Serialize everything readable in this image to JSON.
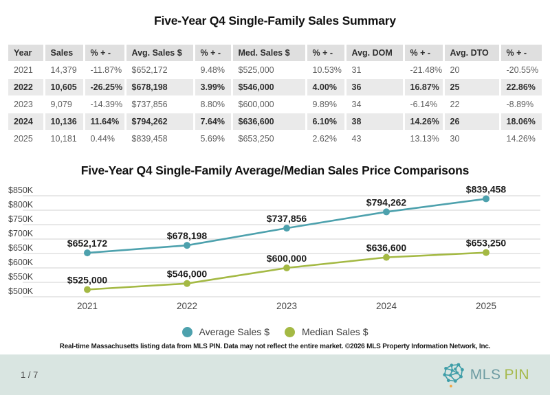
{
  "summary_table": {
    "title": "Five-Year Q4 Single-Family Sales Summary",
    "columns": [
      "Year",
      "Sales",
      "% + -",
      "Avg. Sales $",
      "% + -",
      "Med. Sales $",
      "% + -",
      "Avg. DOM",
      "% + -",
      "Avg. DTO",
      "% + -"
    ],
    "rows": [
      {
        "cells": [
          "2021",
          "14,379",
          "-11.87%",
          "$652,172",
          "9.48%",
          "$525,000",
          "10.53%",
          "31",
          "-21.48%",
          "20",
          "-20.55%"
        ]
      },
      {
        "cells": [
          "2022",
          "10,605",
          "-26.25%",
          "$678,198",
          "3.99%",
          "$546,000",
          "4.00%",
          "36",
          "16.87%",
          "25",
          "22.86%"
        ]
      },
      {
        "cells": [
          "2023",
          "9,079",
          "-14.39%",
          "$737,856",
          "8.80%",
          "$600,000",
          "9.89%",
          "34",
          "-6.14%",
          "22",
          "-8.89%"
        ]
      },
      {
        "cells": [
          "2024",
          "10,136",
          "11.64%",
          "$794,262",
          "7.64%",
          "$636,600",
          "6.10%",
          "38",
          "14.26%",
          "26",
          "18.06%"
        ]
      },
      {
        "cells": [
          "2025",
          "10,181",
          "0.44%",
          "$839,458",
          "5.69%",
          "$653,250",
          "2.62%",
          "43",
          "13.13%",
          "30",
          "14.26%"
        ]
      }
    ]
  },
  "chart_data": {
    "type": "line",
    "title": "Five-Year Q4 Single-Family Average/Median Sales Price Comparisons",
    "categories": [
      "2021",
      "2022",
      "2023",
      "2024",
      "2025"
    ],
    "series": [
      {
        "name": "Average Sales $",
        "color": "#4DA1AD",
        "values": [
          652172,
          678198,
          737856,
          794262,
          839458
        ],
        "labels": [
          "$652,172",
          "$678,198",
          "$737,856",
          "$794,262",
          "$839,458"
        ]
      },
      {
        "name": "Median Sales $",
        "color": "#A4B944",
        "values": [
          525000,
          546000,
          600000,
          636600,
          653250
        ],
        "labels": [
          "$525,000",
          "$546,000",
          "$600,000",
          "$636,600",
          "$653,250"
        ]
      }
    ],
    "xlabel": "",
    "ylabel": "",
    "ylim": [
      500000,
      850000
    ],
    "ytick_step": 50000,
    "ytick_labels": [
      "$850K",
      "$800K",
      "$750K",
      "$700K",
      "$650K",
      "$600K",
      "$550K",
      "$500K"
    ],
    "grid": true,
    "legend_position": "bottom"
  },
  "footer": {
    "disclaimer": "Real-time Massachusetts listing data from MLS PIN. Data may not reflect the entire market. ©2026 MLS Property Information Network, Inc.",
    "page_indicator": "1 / 7",
    "logo": {
      "text_primary": "MLS",
      "text_secondary": "PIN"
    }
  },
  "colors": {
    "average_series": "#4DA1AD",
    "median_series": "#A4B944",
    "gridline": "#DBDBDB",
    "table_header_bg": "#DFDFDF",
    "table_alt_row_bg": "#EAEAEA",
    "footer_bg": "#D9E5E1",
    "logo_mls": "#6C9AA1",
    "logo_pin": "#A5B94B",
    "logo_accent_dot": "#F2A33C"
  }
}
